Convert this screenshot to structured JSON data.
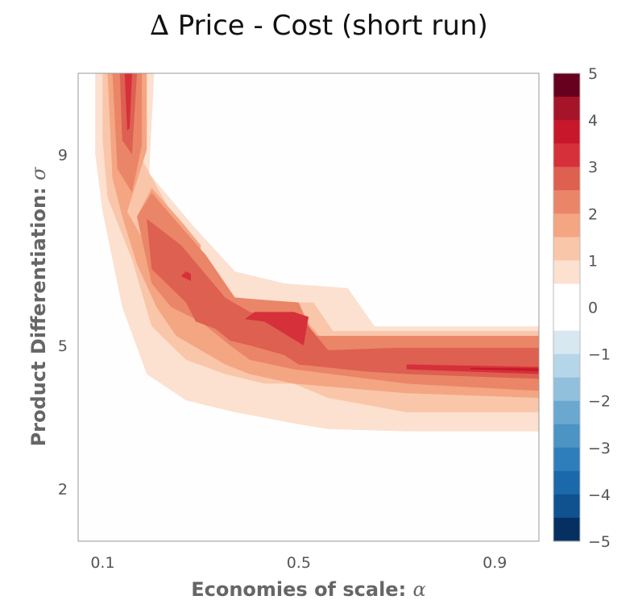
{
  "chart_data": {
    "type": "contour",
    "title_symbol": "∆",
    "title_text": "Price - Cost (short run)",
    "xlabel_text": "Economies of scale: ",
    "xlabel_symbol": "α",
    "ylabel_text": "Product Differentiation: ",
    "ylabel_symbol": "σ",
    "xlim": [
      0.05,
      0.99
    ],
    "ylim": [
      0.9,
      10.7
    ],
    "xticks": [
      0.1,
      0.5,
      0.9
    ],
    "xtick_labels": [
      "0.1",
      "0.5",
      "0.9"
    ],
    "yticks": [
      2,
      5,
      9
    ],
    "ytick_labels": [
      "2",
      "5",
      "9"
    ],
    "colorbar": {
      "min": -5,
      "max": 5,
      "step": 0.5,
      "ticks": [
        5,
        4,
        3,
        2,
        1,
        0,
        -1,
        -2,
        -3,
        -4,
        -5
      ],
      "tick_labels": [
        "5",
        "4",
        "3",
        "2",
        "1",
        "0",
        "−1",
        "−2",
        "−3",
        "−4",
        "−5"
      ],
      "colors": [
        "#67001f",
        "#a51429",
        "#c8172a",
        "#d6303a",
        "#dd6050",
        "#eb8567",
        "#f4a582",
        "#f9c6aa",
        "#fce0d0",
        "#ffffff",
        "#ffffff",
        "#d7e8f1",
        "#b5d6e9",
        "#91c0dd",
        "#6aa8d0",
        "#4b94c4",
        "#2f7ebc",
        "#1b68aa",
        "#10518f",
        "#053061"
      ]
    },
    "levels": [
      {
        "level": 0.5,
        "color": "#fce0d0",
        "polygons": [
          [
            [
              0.085,
              10.7
            ],
            [
              0.205,
              10.7
            ],
            [
              0.195,
              8.6
            ],
            [
              0.285,
              7.5
            ],
            [
              0.37,
              6.55
            ],
            [
              0.47,
              6.3
            ],
            [
              0.6,
              6.2
            ],
            [
              0.655,
              5.4
            ],
            [
              0.99,
              5.4
            ],
            [
              0.99,
              3.2
            ],
            [
              0.72,
              3.2
            ],
            [
              0.56,
              3.25
            ],
            [
              0.5,
              3.35
            ],
            [
              0.37,
              3.6
            ],
            [
              0.27,
              3.85
            ],
            [
              0.19,
              4.4
            ],
            [
              0.14,
              5.8
            ],
            [
              0.1,
              7.8
            ],
            [
              0.085,
              9.0
            ]
          ]
        ]
      },
      {
        "level": 1.0,
        "color": "#f9c6aa",
        "polygons": [
          [
            [
              0.1,
              10.7
            ],
            [
              0.19,
              10.7
            ],
            [
              0.18,
              8.9
            ],
            [
              0.255,
              7.5
            ],
            [
              0.35,
              6.05
            ],
            [
              0.45,
              5.9
            ],
            [
              0.53,
              5.9
            ],
            [
              0.57,
              5.3
            ],
            [
              0.99,
              5.3
            ],
            [
              0.99,
              3.6
            ],
            [
              0.72,
              3.6
            ],
            [
              0.56,
              3.9
            ],
            [
              0.49,
              4.2
            ],
            [
              0.43,
              4.2
            ],
            [
              0.35,
              4.4
            ],
            [
              0.27,
              4.7
            ],
            [
              0.2,
              5.4
            ],
            [
              0.16,
              6.8
            ],
            [
              0.11,
              8.1
            ],
            [
              0.1,
              9.3
            ]
          ]
        ]
      },
      {
        "level": 1.5,
        "color": "#f4a582",
        "polygons": [
          [
            [
              0.11,
              10.7
            ],
            [
              0.19,
              10.7
            ],
            [
              0.19,
              9.1
            ],
            [
              0.15,
              7.8
            ],
            [
              0.2,
              6.9
            ],
            [
              0.27,
              6.3
            ],
            [
              0.33,
              6.0
            ],
            [
              0.37,
              5.8
            ],
            [
              0.5,
              5.7
            ],
            [
              0.55,
              5.1
            ],
            [
              0.99,
              5.1
            ],
            [
              0.99,
              3.9
            ],
            [
              0.72,
              4.0
            ],
            [
              0.49,
              4.2
            ],
            [
              0.4,
              4.4
            ],
            [
              0.35,
              4.6
            ],
            [
              0.25,
              5.2
            ],
            [
              0.21,
              5.8
            ],
            [
              0.17,
              6.7
            ],
            [
              0.14,
              7.7
            ],
            [
              0.12,
              8.5
            ]
          ],
          [
            [
              0.17,
              7.7
            ],
            [
              0.2,
              8.3
            ],
            [
              0.26,
              7.6
            ],
            [
              0.3,
              7.1
            ],
            [
              0.3,
              6.3
            ],
            [
              0.27,
              5.9
            ],
            [
              0.2,
              6.4
            ]
          ]
        ]
      },
      {
        "level": 2.0,
        "color": "#eb8567",
        "polygons": [
          [
            [
              0.12,
              10.7
            ],
            [
              0.18,
              10.7
            ],
            [
              0.18,
              9.2
            ],
            [
              0.16,
              8.2
            ],
            [
              0.13,
              8.7
            ]
          ],
          [
            [
              0.17,
              7.7
            ],
            [
              0.2,
              8.2
            ],
            [
              0.25,
              7.6
            ],
            [
              0.31,
              6.9
            ],
            [
              0.37,
              6.0
            ],
            [
              0.5,
              5.9
            ],
            [
              0.53,
              5.2
            ],
            [
              0.99,
              5.2
            ],
            [
              0.99,
              4.05
            ],
            [
              0.72,
              4.2
            ],
            [
              0.49,
              4.5
            ],
            [
              0.4,
              4.7
            ],
            [
              0.36,
              5.0
            ],
            [
              0.3,
              5.5
            ],
            [
              0.24,
              5.8
            ],
            [
              0.2,
              6.3
            ]
          ]
        ]
      },
      {
        "level": 2.5,
        "color": "#dd6050",
        "polygons": [
          [
            [
              0.135,
              10.7
            ],
            [
              0.17,
              10.7
            ],
            [
              0.16,
              9.0
            ],
            [
              0.14,
              9.3
            ]
          ],
          [
            [
              0.19,
              7.65
            ],
            [
              0.26,
              7.1
            ],
            [
              0.35,
              6.0
            ],
            [
              0.4,
              5.7
            ],
            [
              0.44,
              5.6
            ],
            [
              0.5,
              5.5
            ],
            [
              0.52,
              5.4
            ],
            [
              0.56,
              4.9
            ],
            [
              0.7,
              4.95
            ],
            [
              0.99,
              4.95
            ],
            [
              0.99,
              4.3
            ],
            [
              0.72,
              4.4
            ],
            [
              0.64,
              4.45
            ],
            [
              0.5,
              4.6
            ],
            [
              0.47,
              4.8
            ],
            [
              0.4,
              5.0
            ],
            [
              0.36,
              5.1
            ],
            [
              0.33,
              5.35
            ],
            [
              0.29,
              5.5
            ],
            [
              0.27,
              5.9
            ],
            [
              0.2,
              6.6
            ]
          ]
        ]
      },
      {
        "level": 3.5,
        "color": "#d6303a",
        "polygons": [
          [
            [
              0.145,
              10.7
            ],
            [
              0.16,
              10.7
            ],
            [
              0.155,
              9.55
            ],
            [
              0.15,
              9.5
            ]
          ],
          [
            [
              0.27,
              6.55
            ],
            [
              0.28,
              6.5
            ],
            [
              0.28,
              6.35
            ],
            [
              0.26,
              6.45
            ]
          ],
          [
            [
              0.41,
              5.7
            ],
            [
              0.49,
              5.7
            ],
            [
              0.52,
              5.6
            ],
            [
              0.51,
              5.0
            ],
            [
              0.43,
              5.5
            ],
            [
              0.39,
              5.55
            ]
          ],
          [
            [
              0.72,
              4.6
            ],
            [
              0.99,
              4.55
            ],
            [
              0.99,
              4.4
            ],
            [
              0.72,
              4.5
            ]
          ]
        ]
      },
      {
        "level": 4.0,
        "color": "#c8172a",
        "polygons": [
          [
            [
              0.85,
              4.53
            ],
            [
              0.99,
              4.52
            ],
            [
              0.99,
              4.46
            ],
            [
              0.85,
              4.5
            ]
          ]
        ]
      }
    ]
  }
}
